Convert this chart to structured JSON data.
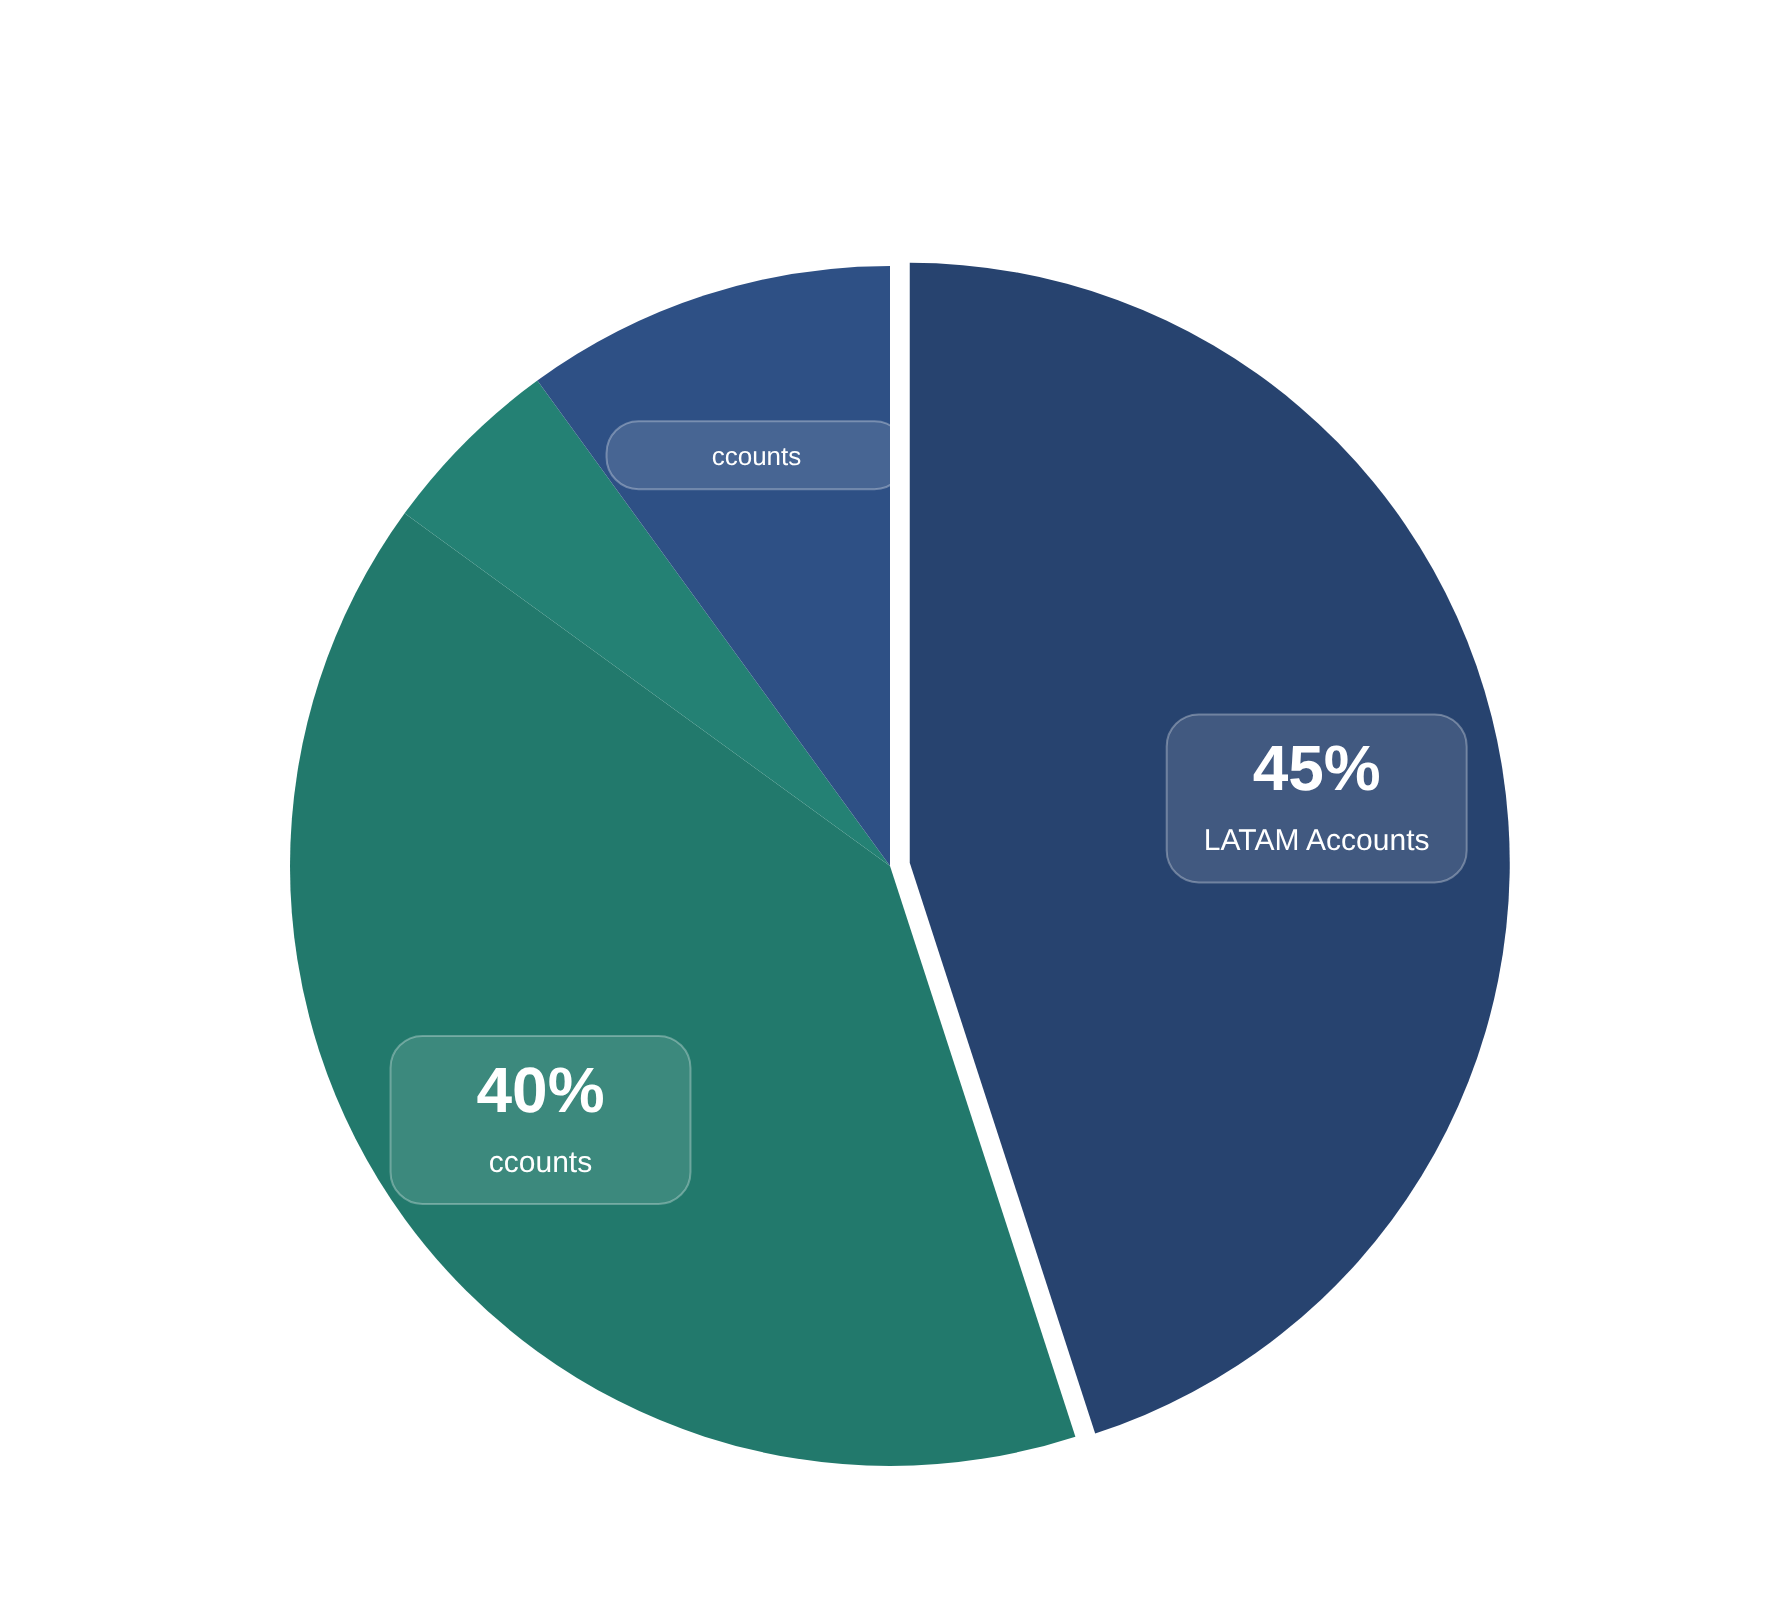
{
  "chart_data": {
    "type": "pie",
    "categories": [
      "LATAM Accounts",
      "ccounts",
      null,
      "ccounts"
    ],
    "values": [
      45,
      40,
      5,
      10
    ],
    "colors": [
      "#27436f",
      "#22796c",
      "#248174",
      "#2e5085"
    ],
    "value_labels": [
      "45%",
      "40%",
      null,
      null
    ],
    "legend": false
  }
}
